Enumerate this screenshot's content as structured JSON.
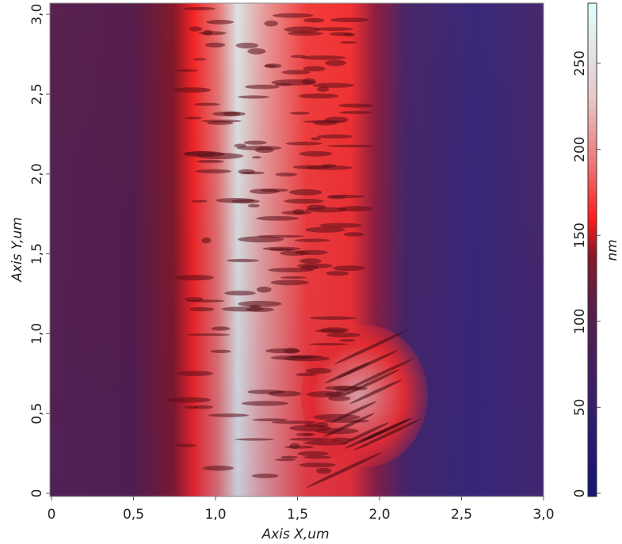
{
  "chart_data": {
    "type": "heatmap",
    "x_label": "Axis X,um",
    "y_label": "Axis Y,um",
    "colorbar_label": "nm",
    "xlim": [
      0,
      3.0
    ],
    "ylim": [
      0,
      3.07
    ],
    "xticks": [
      0,
      {
        "value": 0.5,
        "label": "0,5"
      },
      {
        "value": 1.0,
        "label": "1,0"
      },
      {
        "value": 1.5,
        "label": "1,5"
      },
      {
        "value": 2.0,
        "label": "2,0"
      },
      {
        "value": 2.5,
        "label": "2,5"
      },
      {
        "value": 3.0,
        "label": "3,0"
      }
    ],
    "yticks": [
      0,
      {
        "value": 0.5,
        "label": "0,5"
      },
      {
        "value": 1.0,
        "label": "1,0"
      },
      {
        "value": 1.5,
        "label": "1,5"
      },
      {
        "value": 2.0,
        "label": "2,0"
      },
      {
        "value": 2.5,
        "label": "2,5"
      },
      {
        "value": 3.0,
        "label": "3,0"
      }
    ],
    "colorbar_lim": [
      0,
      285
    ],
    "colorbar_ticks": [
      0,
      50,
      100,
      150,
      200,
      250
    ],
    "colorscale": [
      [
        0,
        "#14147a"
      ],
      [
        60,
        "#3a1f6a"
      ],
      [
        110,
        "#5a1f48"
      ],
      [
        140,
        "#8a1828"
      ],
      [
        160,
        "#ff1a1a"
      ],
      [
        190,
        "#f07070"
      ],
      [
        230,
        "#e8c8c8"
      ],
      [
        285,
        "#e0ffff"
      ]
    ]
  }
}
